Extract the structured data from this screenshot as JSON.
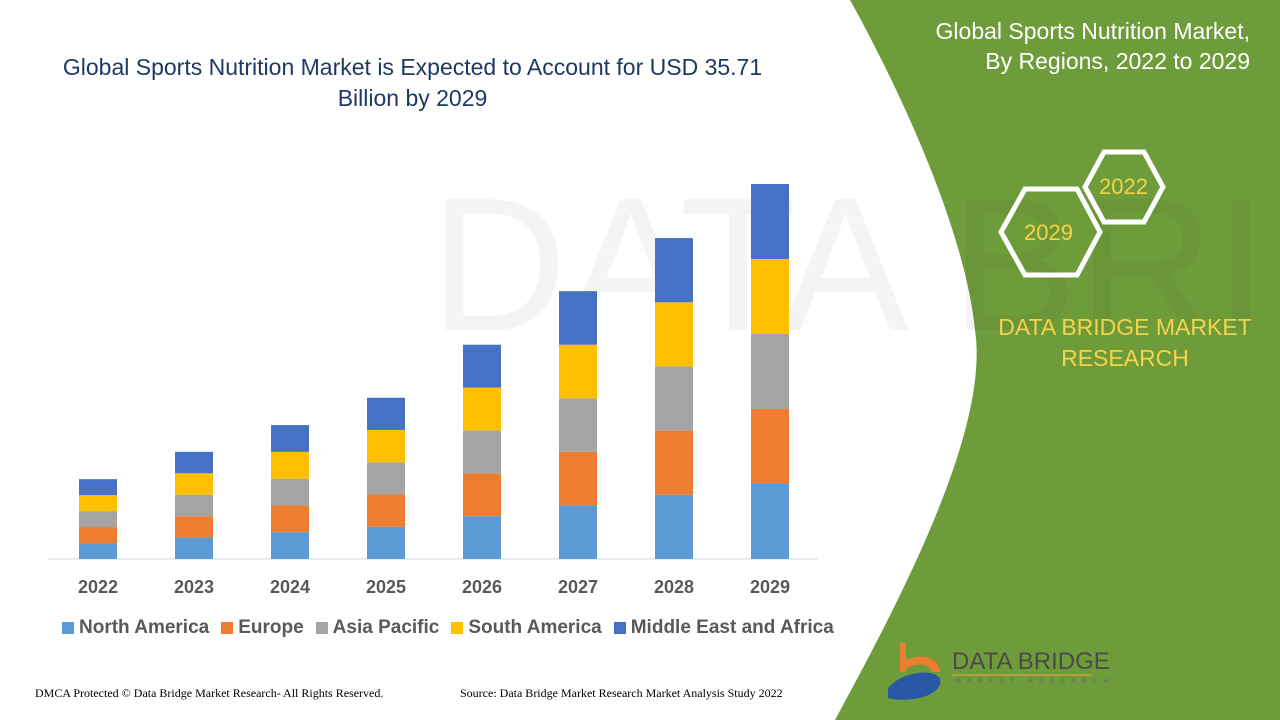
{
  "header": {
    "title": "Global Sports Nutrition Market is Expected to Account for USD 35.71 Billion by 2029"
  },
  "side_panel": {
    "title_line1": "Global Sports Nutrition Market,",
    "title_line2": "By Regions, 2022 to 2029",
    "hex_top": "2022",
    "hex_bottom": "2029",
    "brand_line1": "DATA BRIDGE MARKET",
    "brand_line2": "RESEARCH",
    "logo_text": "DATA BRIDGE",
    "logo_subtext": "MARKET RESEARCH",
    "panel_color": "#6f9c3b"
  },
  "footer": {
    "left": "DMCA Protected © Data Bridge Market Research- All Rights Reserved.",
    "right": "Source: Data Bridge Market Research Market Analysis Study 2022"
  },
  "chart_data": {
    "type": "bar",
    "stacked": true,
    "title": "Global Sports Nutrition Market is Expected to Account for USD 35.71 Billion by 2029",
    "categories": [
      "2022",
      "2023",
      "2024",
      "2025",
      "2026",
      "2027",
      "2028",
      "2029"
    ],
    "series": [
      {
        "name": "North America",
        "color": "#5b9bd5",
        "values": [
          1.52,
          2.04,
          2.55,
          3.07,
          4.08,
          5.1,
          6.11,
          7.14
        ]
      },
      {
        "name": "Europe",
        "color": "#ed7d31",
        "values": [
          1.52,
          2.04,
          2.55,
          3.07,
          4.08,
          5.1,
          6.11,
          7.14
        ]
      },
      {
        "name": "Asia Pacific",
        "color": "#a5a5a5",
        "values": [
          1.52,
          2.04,
          2.55,
          3.07,
          4.08,
          5.1,
          6.11,
          7.14
        ]
      },
      {
        "name": "South America",
        "color": "#ffc000",
        "values": [
          1.52,
          2.04,
          2.55,
          3.07,
          4.08,
          5.1,
          6.11,
          7.14
        ]
      },
      {
        "name": "Middle East and Africa",
        "color": "#4472c4",
        "values": [
          1.52,
          2.04,
          2.55,
          3.07,
          4.08,
          5.1,
          6.11,
          7.14
        ]
      }
    ],
    "ylim": [
      0,
      36
    ],
    "grid": false,
    "y_axis_visible": false,
    "legend_position": "bottom"
  }
}
